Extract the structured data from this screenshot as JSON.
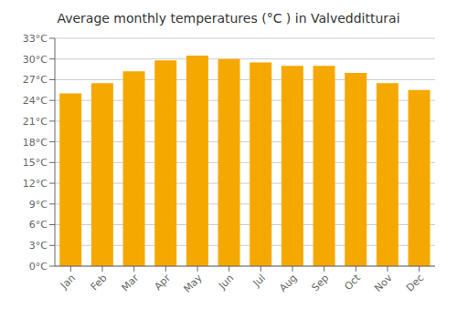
{
  "chart_data": {
    "type": "bar",
    "title": "Average monthly temperatures (°C ) in Valvedditturai",
    "categories": [
      "Jan",
      "Feb",
      "Mar",
      "Apr",
      "May",
      "Jun",
      "Jul",
      "Aug",
      "Sep",
      "Oct",
      "Nov",
      "Dec"
    ],
    "values": [
      25.0,
      26.5,
      28.2,
      29.8,
      30.5,
      30.0,
      29.5,
      29.0,
      29.0,
      28.0,
      26.5,
      25.5
    ],
    "color": "#F5A800",
    "ylim": [
      0,
      33
    ],
    "yticks": [
      {
        "value": 0,
        "label": "0°C"
      },
      {
        "value": 3,
        "label": "3°C"
      },
      {
        "value": 6,
        "label": "6°C"
      },
      {
        "value": 9,
        "label": "9°C"
      },
      {
        "value": 12,
        "label": "12°C"
      },
      {
        "value": 15,
        "label": "15°C"
      },
      {
        "value": 18,
        "label": "18°C"
      },
      {
        "value": 21,
        "label": "21°C"
      },
      {
        "value": 24,
        "label": "24°C"
      },
      {
        "value": 27,
        "label": "27°C"
      },
      {
        "value": 30,
        "label": "30°C"
      },
      {
        "value": 33,
        "label": "33°C"
      }
    ],
    "grid": true
  }
}
